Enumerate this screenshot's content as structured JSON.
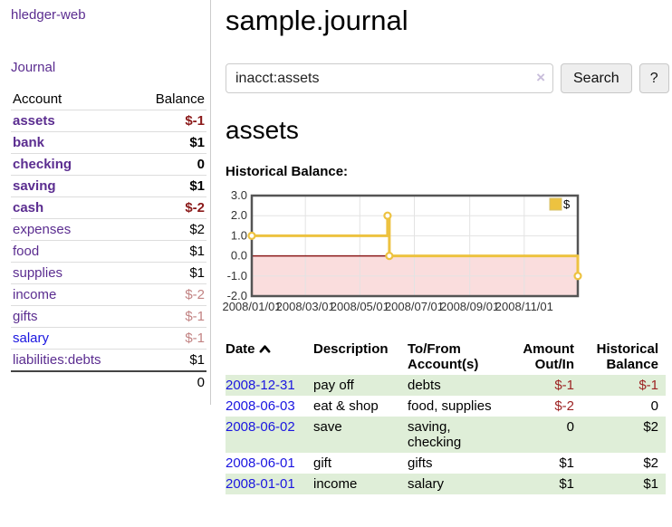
{
  "sidebar": {
    "brand": "hledger-web",
    "nav": {
      "journal": "Journal"
    },
    "accounts_table": {
      "headers": {
        "account": "Account",
        "balance": "Balance"
      },
      "rows": [
        {
          "name": "assets",
          "indent": 1,
          "bold": true,
          "balance": "$-1",
          "balance_color": "negative",
          "link_state": "visited"
        },
        {
          "name": "bank",
          "indent": 2,
          "bold": true,
          "balance": "$1",
          "balance_color": "normal",
          "link_state": "visited"
        },
        {
          "name": "checking",
          "indent": 3,
          "bold": true,
          "balance": "0",
          "balance_color": "normal",
          "link_state": "visited"
        },
        {
          "name": "saving",
          "indent": 3,
          "bold": true,
          "balance": "$1",
          "balance_color": "normal",
          "link_state": "visited"
        },
        {
          "name": "cash",
          "indent": 2,
          "bold": true,
          "balance": "$-2",
          "balance_color": "negative",
          "link_state": "visited"
        },
        {
          "name": "expenses",
          "indent": 1,
          "bold": false,
          "balance": "$2",
          "balance_color": "normal",
          "link_state": "visited"
        },
        {
          "name": "food",
          "indent": 2,
          "bold": false,
          "balance": "$1",
          "balance_color": "normal",
          "link_state": "visited"
        },
        {
          "name": "supplies",
          "indent": 2,
          "bold": false,
          "balance": "$1",
          "balance_color": "normal",
          "link_state": "visited"
        },
        {
          "name": "income",
          "indent": 1,
          "bold": false,
          "balance": "$-2",
          "balance_color": "negative-muted",
          "link_state": "visited"
        },
        {
          "name": "gifts",
          "indent": 2,
          "bold": false,
          "balance": "$-1",
          "balance_color": "negative-muted",
          "link_state": "visited"
        },
        {
          "name": "salary",
          "indent": 2,
          "bold": false,
          "balance": "$-1",
          "balance_color": "negative-muted",
          "link_state": "unvisited"
        },
        {
          "name": "liabilities:debts",
          "indent": 1,
          "bold": false,
          "balance": "$1",
          "balance_color": "normal",
          "link_state": "visited"
        }
      ],
      "total": "0"
    }
  },
  "header": {
    "title": "sample.journal"
  },
  "search": {
    "query": "inacct:assets",
    "clear_icon": "×",
    "button": "Search",
    "help_button": "?"
  },
  "account_page": {
    "heading": "assets",
    "chart_label": "Historical Balance:"
  },
  "chart_data": {
    "type": "line",
    "style": "steps",
    "series": [
      {
        "name": "$",
        "color": "#edc240",
        "points": [
          [
            "2008-01-01",
            1
          ],
          [
            "2008-06-01",
            2
          ],
          [
            "2008-06-03",
            0
          ],
          [
            "2008-12-31",
            -1
          ]
        ]
      }
    ],
    "x_range": [
      "2008-01-01",
      "2008-12-31"
    ],
    "ylim": [
      -2,
      3
    ],
    "yticks": [
      "3.0",
      "2.0",
      "1.0",
      "0.0",
      "-1.0",
      "-2.0"
    ],
    "xticks": [
      "2008/01/01",
      "2008/03/01",
      "2008/05/01",
      "2008/07/01",
      "2008/09/01",
      "2008/11/01"
    ],
    "legend": {
      "label": "$",
      "position": "top-right"
    },
    "grid": true,
    "colors": {
      "line": "#edc240",
      "point_fill": "#ffffff",
      "grid": "#e3e3e3",
      "plot_border": "#545454",
      "negative_region_fill": "#fadddd",
      "zero_line": "#8b1a1a",
      "tick_text": "#333333"
    }
  },
  "register": {
    "headers": {
      "date": "Date",
      "description": "Description",
      "accounts": "To/From Account(s)",
      "amount": "Amount Out/In",
      "balance": "Historical Balance"
    },
    "sort_icon": "chevron-up",
    "rows": [
      {
        "date": "2008-12-31",
        "description": "pay off",
        "accounts": "debts",
        "amount": "$-1",
        "balance": "$-1"
      },
      {
        "date": "2008-06-03",
        "description": "eat & shop",
        "accounts": "food, supplies",
        "amount": "$-2",
        "balance": "0"
      },
      {
        "date": "2008-06-02",
        "description": "save",
        "accounts": "saving, checking",
        "amount": "0",
        "balance": "$2"
      },
      {
        "date": "2008-06-01",
        "description": "gift",
        "accounts": "gifts",
        "amount": "$1",
        "balance": "$2"
      },
      {
        "date": "2008-01-01",
        "description": "income",
        "accounts": "salary",
        "amount": "$1",
        "balance": "$1"
      }
    ]
  }
}
